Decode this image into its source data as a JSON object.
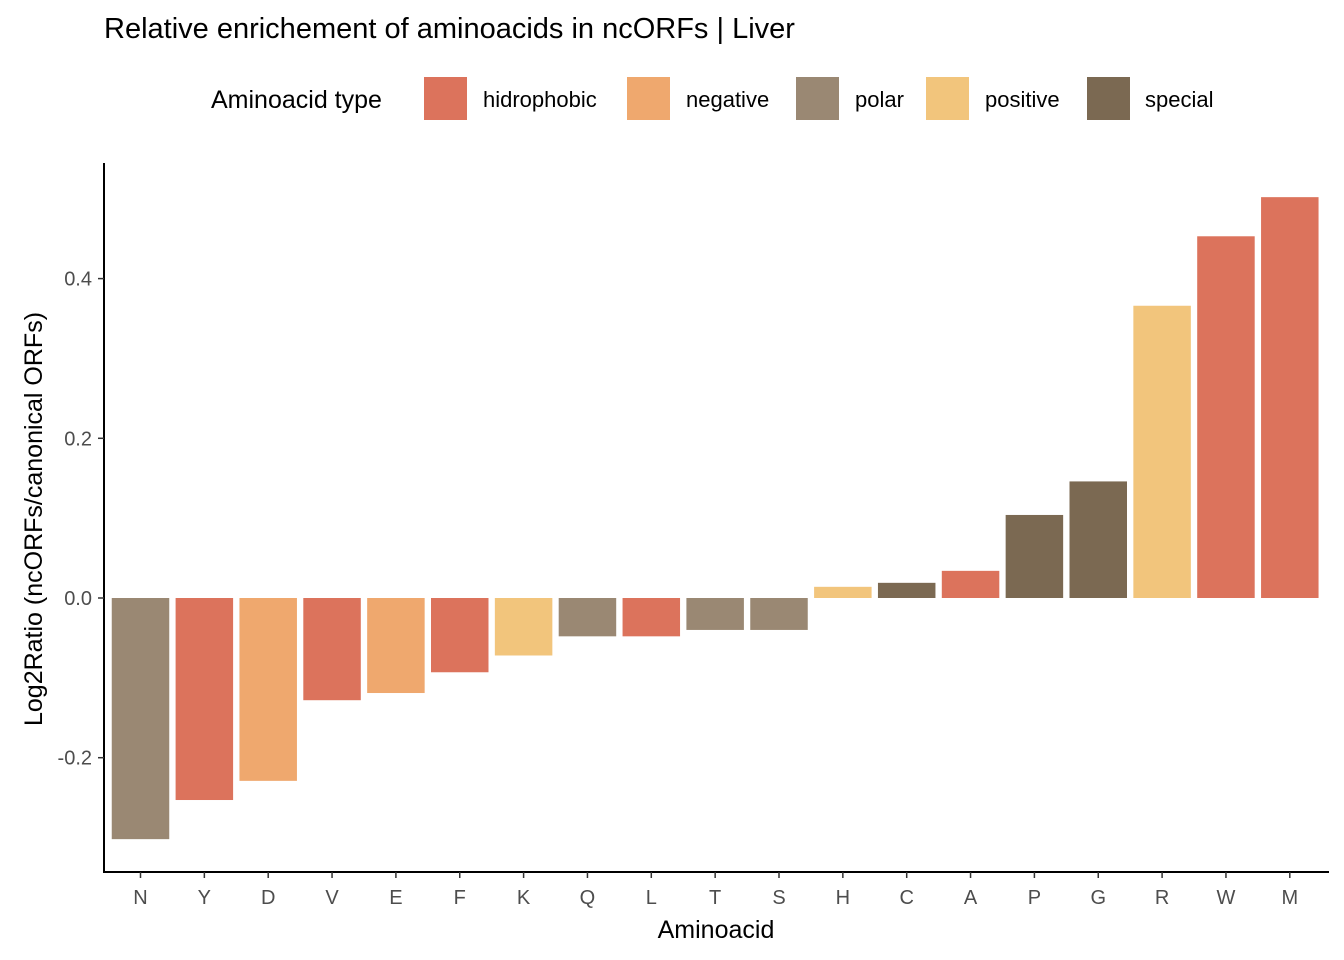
{
  "chart_data": {
    "type": "bar",
    "title": "Relative enrichement of aminoacids in ncORFs | Liver",
    "xlabel": "Aminoacid",
    "ylabel": "Log2Ratio (ncORFs/canonical ORFs)",
    "ylim": [
      -0.34,
      0.54
    ],
    "yticks": [
      -0.2,
      0.0,
      0.2,
      0.4
    ],
    "ytick_labels": [
      "-0.2",
      "0.0",
      "0.2",
      "0.4"
    ],
    "grid": false,
    "legend": {
      "title": "Aminoacid type",
      "placement": "top",
      "entries": [
        {
          "label": "hidrophobic",
          "color": "#DC735C"
        },
        {
          "label": "negative",
          "color": "#EFA86E"
        },
        {
          "label": "polar",
          "color": "#9A8873"
        },
        {
          "label": "positive",
          "color": "#F2C57C"
        },
        {
          "label": "special",
          "color": "#7B6952"
        }
      ]
    },
    "categories": [
      "N",
      "Y",
      "D",
      "V",
      "E",
      "F",
      "K",
      "Q",
      "L",
      "T",
      "S",
      "H",
      "C",
      "A",
      "P",
      "G",
      "R",
      "W",
      "M"
    ],
    "values": [
      -0.302,
      -0.253,
      -0.229,
      -0.128,
      -0.119,
      -0.093,
      -0.072,
      -0.048,
      -0.048,
      -0.04,
      -0.04,
      0.014,
      0.019,
      0.034,
      0.104,
      0.146,
      0.366,
      0.453,
      0.502
    ],
    "types": [
      "polar",
      "hidrophobic",
      "negative",
      "hidrophobic",
      "negative",
      "hidrophobic",
      "positive",
      "polar",
      "hidrophobic",
      "polar",
      "polar",
      "positive",
      "special",
      "hidrophobic",
      "special",
      "special",
      "positive",
      "hidrophobic",
      "hidrophobic"
    ]
  }
}
